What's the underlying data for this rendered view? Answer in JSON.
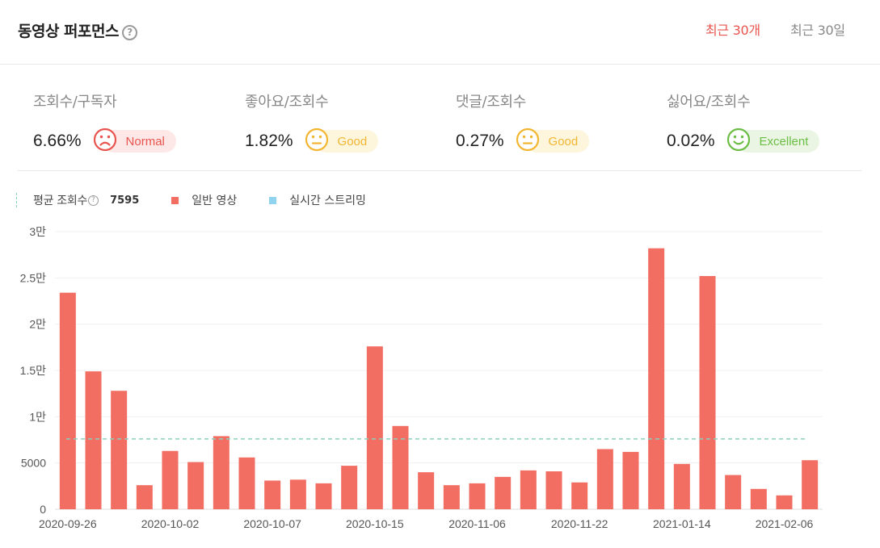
{
  "header": {
    "title": "동영상 퍼포먼스",
    "help_symbol": "?",
    "tabs": [
      {
        "label": "최근 30개",
        "active": true
      },
      {
        "label": "최근 30일",
        "active": false
      }
    ]
  },
  "metrics": [
    {
      "label": "조회수/구독자",
      "value": "6.66%",
      "status": "Normal",
      "mood": "sad",
      "color": "#e8554e",
      "bg": "#fde7e7"
    },
    {
      "label": "좋아요/조회수",
      "value": "1.82%",
      "status": "Good",
      "mood": "neutral",
      "color": "#f2b632",
      "bg": "#fdf6dc"
    },
    {
      "label": "댓글/조회수",
      "value": "0.27%",
      "status": "Good",
      "mood": "neutral",
      "color": "#f2b632",
      "bg": "#fdf6dc"
    },
    {
      "label": "싫어요/조회수",
      "value": "0.02%",
      "status": "Excellent",
      "mood": "happy",
      "color": "#6cbd45",
      "bg": "#eaf6e3"
    }
  ],
  "legend": {
    "average_label": "평균 조회수",
    "average_value": "7595",
    "normal_label": "일반 영상",
    "live_label": "실시간 스트리밍",
    "normal_color": "#f26d62",
    "live_color": "#8fd3ef",
    "average_line_color": "#8ad0c0"
  },
  "chart_data": {
    "type": "bar",
    "values": [
      23400,
      14900,
      12800,
      2600,
      6300,
      5100,
      7900,
      5600,
      3100,
      3200,
      2800,
      4700,
      17600,
      9000,
      4000,
      2600,
      2800,
      3500,
      4200,
      4100,
      2900,
      6500,
      6200,
      28200,
      4900,
      25200,
      3700,
      2200,
      1500,
      5300
    ],
    "x_tick_labels": [
      "2020-09-26",
      "2020-10-02",
      "2020-10-07",
      "2020-10-15",
      "2020-11-06",
      "2020-11-22",
      "2021-01-14",
      "2021-02-06"
    ],
    "x_tick_indices": [
      0,
      4,
      8,
      12,
      16,
      20,
      24,
      28
    ],
    "y_ticks": [
      0,
      5000,
      10000,
      15000,
      20000,
      25000,
      30000
    ],
    "y_tick_labels": [
      "0",
      "5000",
      "1만",
      "1.5만",
      "2만",
      "2.5만",
      "3만"
    ],
    "ylim": [
      0,
      30000
    ],
    "average": 7595,
    "grid": true,
    "bar_color": "#f26d62"
  }
}
